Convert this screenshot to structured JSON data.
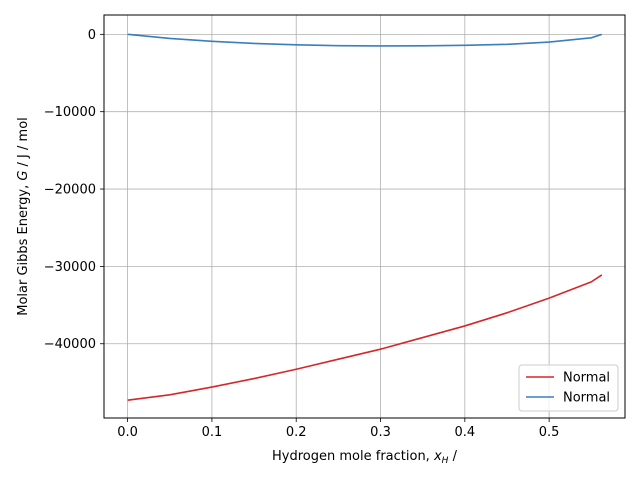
{
  "chart_data": {
    "type": "line",
    "xlabel": "Hydrogen mole fraction,",
    "xlabel_symbol": "x",
    "xlabel_sub": "H",
    "xlabel_suffix": " /",
    "ylabel": "Molar Gibbs Energy,",
    "ylabel_symbol": "G",
    "ylabel_suffix": " / J / mol",
    "xlim": [
      -0.028,
      0.59
    ],
    "ylim": [
      -49600,
      2500
    ],
    "xticks": [
      0.0,
      0.1,
      0.2,
      0.3,
      0.4,
      0.5
    ],
    "xtick_labels": [
      "0.0",
      "0.1",
      "0.2",
      "0.3",
      "0.4",
      "0.5"
    ],
    "yticks": [
      0,
      -10000,
      -20000,
      -30000,
      -40000
    ],
    "ytick_labels": [
      "0",
      "−10000",
      "−20000",
      "−30000",
      "−40000"
    ],
    "grid": true,
    "legend_position": "lower-right",
    "series": [
      {
        "name": "Normal",
        "color": "#d62728",
        "x": [
          0.0,
          0.05,
          0.1,
          0.15,
          0.2,
          0.25,
          0.3,
          0.35,
          0.4,
          0.45,
          0.5,
          0.55,
          0.5625
        ],
        "y": [
          -47300,
          -46600,
          -45600,
          -44500,
          -43300,
          -42000,
          -40700,
          -39200,
          -37700,
          -36000,
          -34100,
          -32000,
          -31100
        ]
      },
      {
        "name": "Normal",
        "color": "#3a7ebf",
        "x": [
          0.0,
          0.05,
          0.1,
          0.15,
          0.2,
          0.25,
          0.3,
          0.35,
          0.4,
          0.45,
          0.5,
          0.55,
          0.5625
        ],
        "y": [
          0,
          -530,
          -900,
          -1180,
          -1360,
          -1470,
          -1500,
          -1490,
          -1420,
          -1290,
          -1000,
          -450,
          0
        ]
      }
    ]
  }
}
